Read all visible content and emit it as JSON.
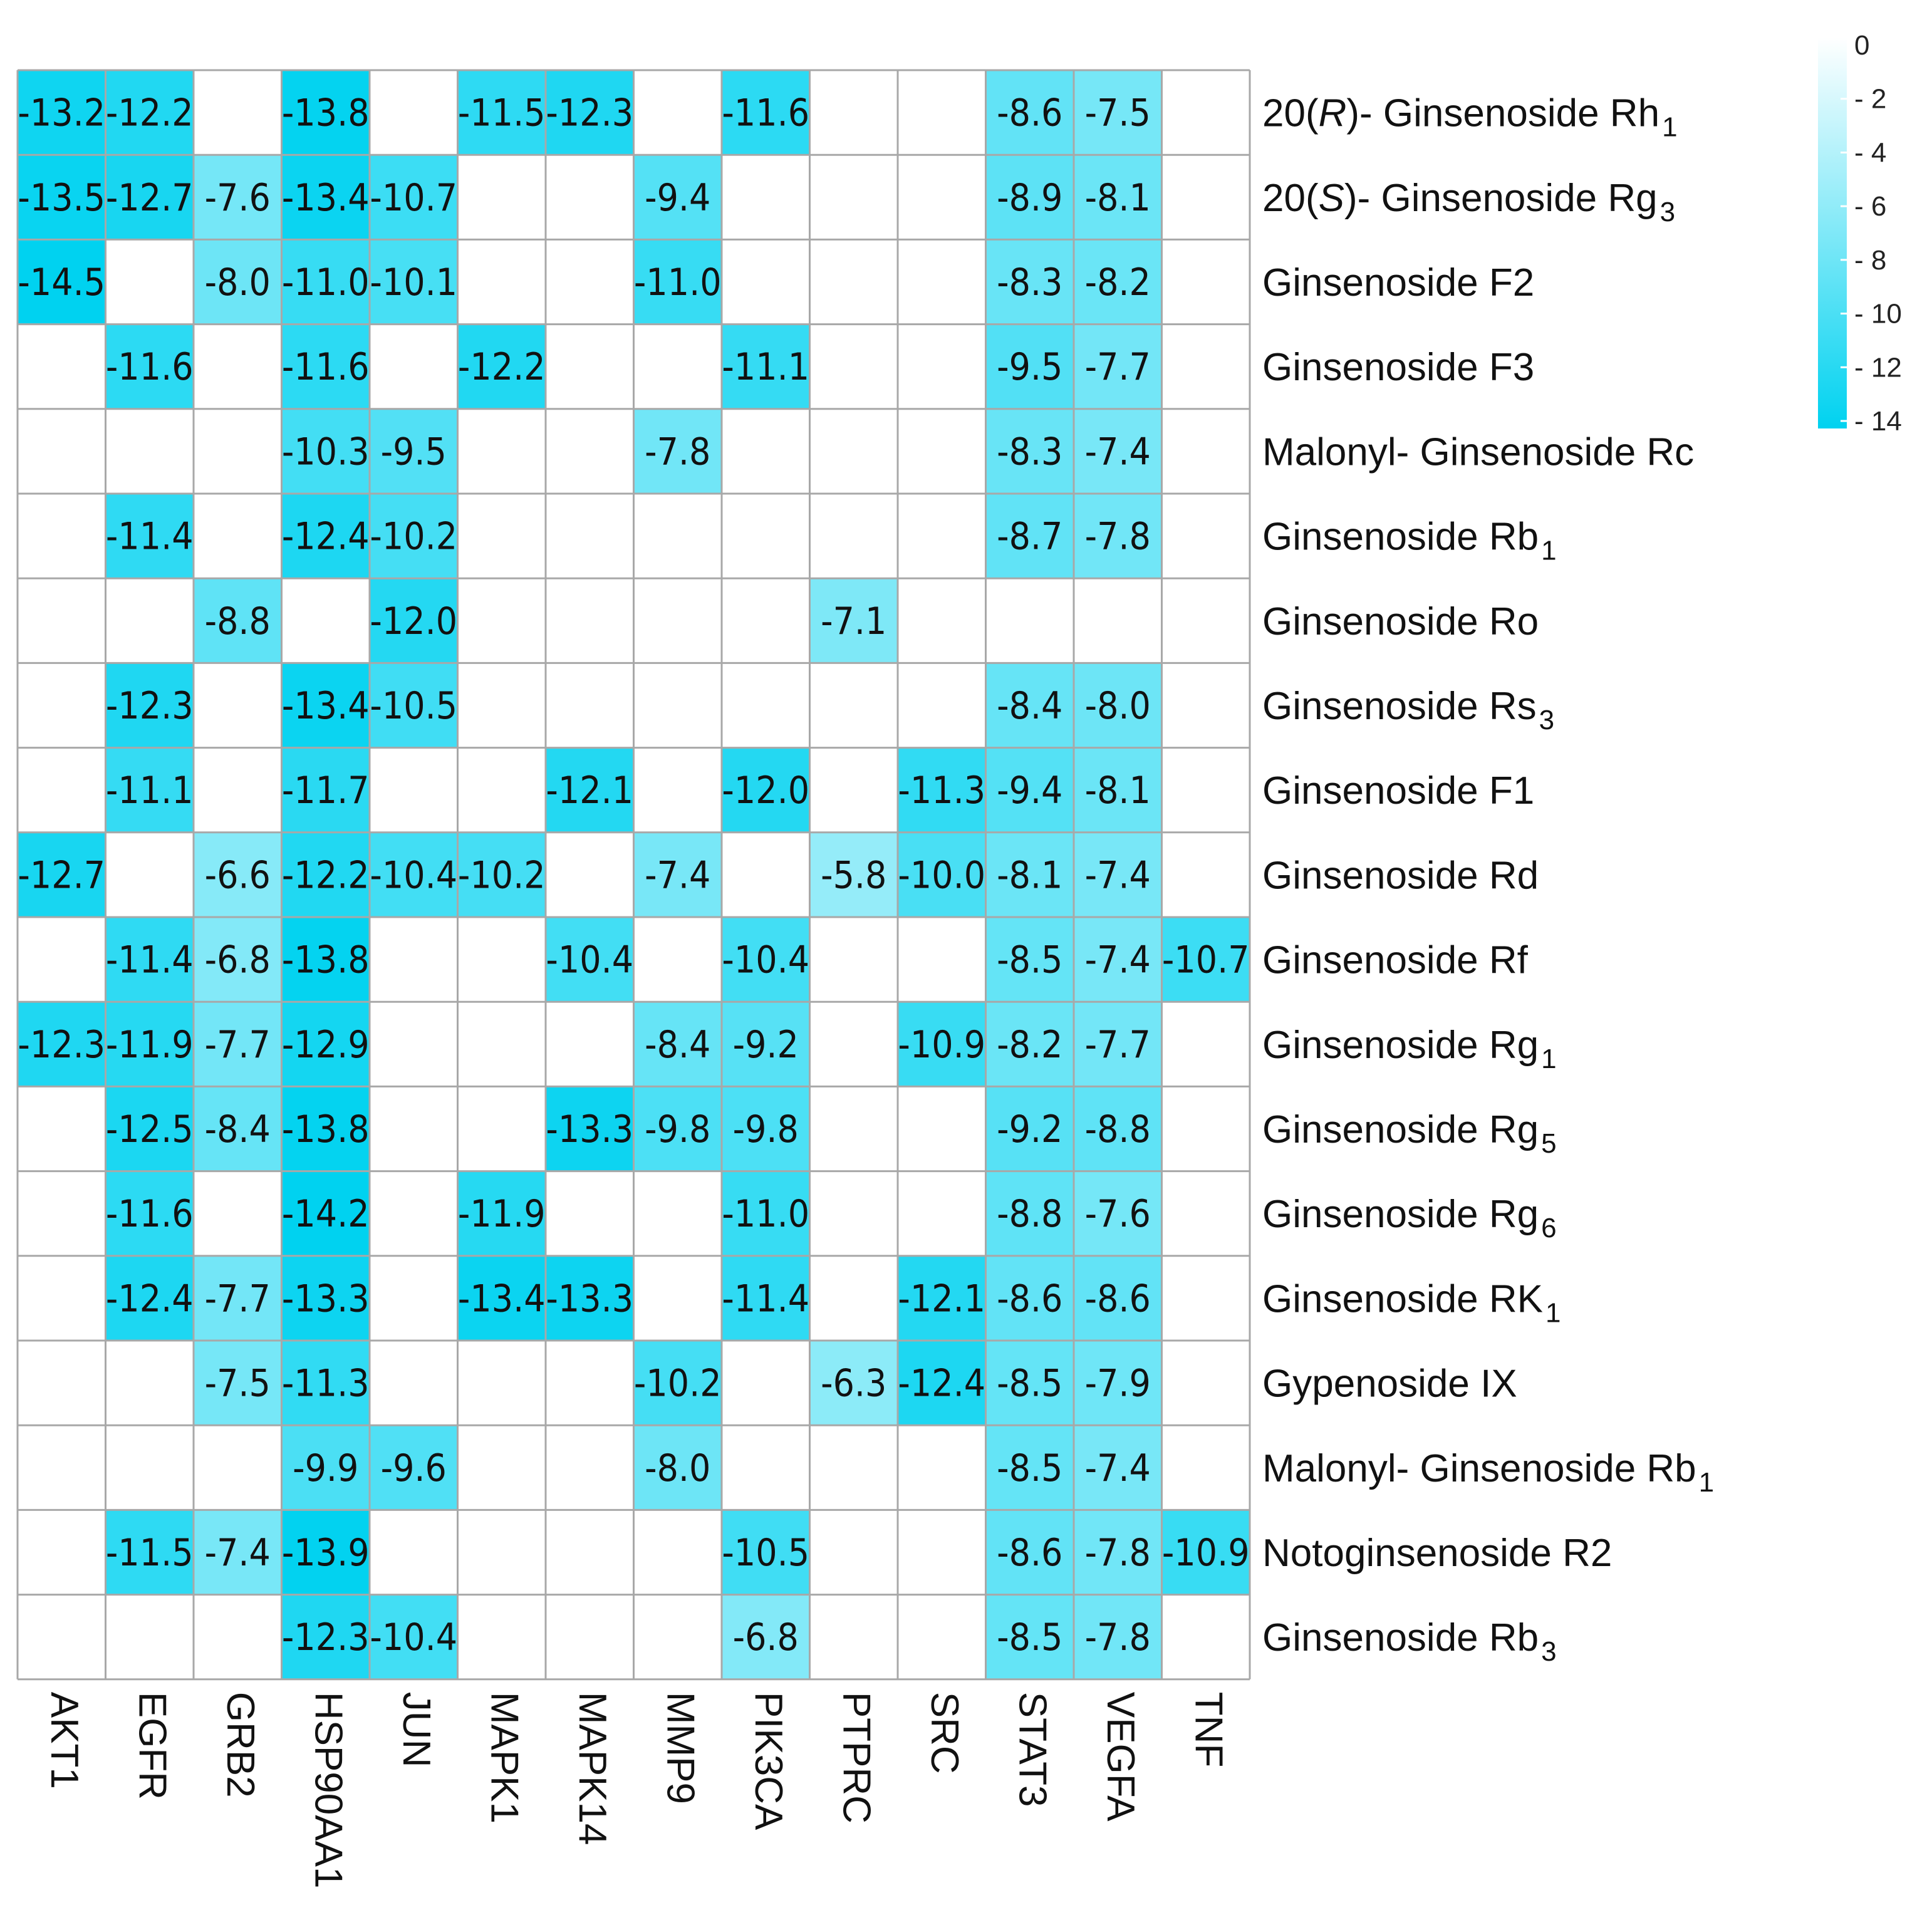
{
  "chart_data": {
    "type": "heatmap",
    "title": "",
    "columns": [
      "AKT1",
      "EGFR",
      "GRB2",
      "HSP90AA1",
      "JUN",
      "MAPK1",
      "MAPK14",
      "MMP9",
      "PIK3CA",
      "PTPRC",
      "SRC",
      "STAT3",
      "VEGFA",
      "TNF"
    ],
    "rows": [
      {
        "pre": "20(",
        "ital": "R",
        "post": ")- Ginsenoside Rh",
        "sub": "1"
      },
      {
        "pre": "20(",
        "ital": "S",
        "post": ")- Ginsenoside Rg",
        "sub": "3"
      },
      {
        "pre": "Ginsenoside F2",
        "ital": "",
        "post": "",
        "sub": ""
      },
      {
        "pre": "Ginsenoside F3",
        "ital": "",
        "post": "",
        "sub": ""
      },
      {
        "pre": "Malonyl- Ginsenoside Rc",
        "ital": "",
        "post": "",
        "sub": ""
      },
      {
        "pre": "Ginsenoside Rb",
        "ital": "",
        "post": "",
        "sub": "1"
      },
      {
        "pre": "Ginsenoside Ro",
        "ital": "",
        "post": "",
        "sub": ""
      },
      {
        "pre": "Ginsenoside Rs",
        "ital": "",
        "post": "",
        "sub": "3"
      },
      {
        "pre": "Ginsenoside F1",
        "ital": "",
        "post": "",
        "sub": ""
      },
      {
        "pre": "Ginsenoside Rd",
        "ital": "",
        "post": "",
        "sub": ""
      },
      {
        "pre": "Ginsenoside Rf",
        "ital": "",
        "post": "",
        "sub": ""
      },
      {
        "pre": "Ginsenoside Rg",
        "ital": "",
        "post": "",
        "sub": "1"
      },
      {
        "pre": "Ginsenoside Rg",
        "ital": "",
        "post": "",
        "sub": "5"
      },
      {
        "pre": "Ginsenoside Rg",
        "ital": "",
        "post": "",
        "sub": "6"
      },
      {
        "pre": "Ginsenoside RK",
        "ital": "",
        "post": "",
        "sub": "1"
      },
      {
        "pre": "Gypenoside IX",
        "ital": "",
        "post": "",
        "sub": ""
      },
      {
        "pre": "Malonyl- Ginsenoside Rb",
        "ital": "",
        "post": "",
        "sub": "1"
      },
      {
        "pre": "Notoginsenoside R2",
        "ital": "",
        "post": "",
        "sub": ""
      },
      {
        "pre": "Ginsenoside Rb",
        "ital": "",
        "post": "",
        "sub": "3"
      }
    ],
    "values": [
      [
        -13.2,
        -12.2,
        null,
        -13.8,
        null,
        -11.5,
        -12.3,
        null,
        -11.6,
        null,
        null,
        -8.6,
        -7.5,
        null
      ],
      [
        -13.5,
        -12.7,
        -7.6,
        -13.4,
        -10.7,
        null,
        null,
        -9.4,
        null,
        null,
        null,
        -8.9,
        -8.1,
        null
      ],
      [
        -14.5,
        null,
        -8.0,
        -11.0,
        -10.1,
        null,
        null,
        -11.0,
        null,
        null,
        null,
        -8.3,
        -8.2,
        null
      ],
      [
        null,
        -11.6,
        null,
        -11.6,
        null,
        -12.2,
        null,
        null,
        -11.1,
        null,
        null,
        -9.5,
        -7.7,
        null
      ],
      [
        null,
        null,
        null,
        -10.3,
        -9.5,
        null,
        null,
        -7.8,
        null,
        null,
        null,
        -8.3,
        -7.4,
        null
      ],
      [
        null,
        -11.4,
        null,
        -12.4,
        -10.2,
        null,
        null,
        null,
        null,
        null,
        null,
        -8.7,
        -7.8,
        null
      ],
      [
        null,
        null,
        -8.8,
        null,
        -12.0,
        null,
        null,
        null,
        null,
        -7.1,
        null,
        null,
        null,
        null
      ],
      [
        null,
        -12.3,
        null,
        -13.4,
        -10.5,
        null,
        null,
        null,
        null,
        null,
        null,
        -8.4,
        -8.0,
        null
      ],
      [
        null,
        -11.1,
        null,
        -11.7,
        null,
        null,
        -12.1,
        null,
        -12.0,
        null,
        -11.3,
        -9.4,
        -8.1,
        null
      ],
      [
        -12.7,
        null,
        -6.6,
        -12.2,
        -10.4,
        -10.2,
        null,
        -7.4,
        null,
        -5.8,
        -10.0,
        -8.1,
        -7.4,
        null
      ],
      [
        null,
        -11.4,
        -6.8,
        -13.8,
        null,
        null,
        -10.4,
        null,
        -10.4,
        null,
        null,
        -8.5,
        -7.4,
        -10.7
      ],
      [
        -12.3,
        -11.9,
        -7.7,
        -12.9,
        null,
        null,
        null,
        -8.4,
        -9.2,
        null,
        -10.9,
        -8.2,
        -7.7,
        null
      ],
      [
        null,
        -12.5,
        -8.4,
        -13.8,
        null,
        null,
        -13.3,
        -9.8,
        -9.8,
        null,
        null,
        -9.2,
        -8.8,
        null
      ],
      [
        null,
        -11.6,
        null,
        -14.2,
        null,
        -11.9,
        null,
        null,
        -11.0,
        null,
        null,
        -8.8,
        -7.6,
        null
      ],
      [
        null,
        -12.4,
        -7.7,
        -13.3,
        null,
        -13.4,
        -13.3,
        null,
        -11.4,
        null,
        -12.1,
        -8.6,
        -8.6,
        null
      ],
      [
        null,
        null,
        -7.5,
        -11.3,
        null,
        null,
        null,
        -10.2,
        null,
        -6.3,
        -12.4,
        -8.5,
        -7.9,
        null
      ],
      [
        null,
        null,
        null,
        -9.9,
        -9.6,
        null,
        null,
        -8.0,
        null,
        null,
        null,
        -8.5,
        -7.4,
        null
      ],
      [
        null,
        -11.5,
        -7.4,
        -13.9,
        null,
        null,
        null,
        null,
        -10.5,
        null,
        null,
        -8.6,
        -7.8,
        -10.9
      ],
      [
        null,
        null,
        null,
        -12.3,
        -10.4,
        null,
        null,
        null,
        -6.8,
        null,
        null,
        -8.5,
        -7.8,
        null
      ]
    ],
    "colorbar": {
      "range": [
        -14,
        0
      ],
      "ticks": [
        "0",
        "- 2",
        "- 4",
        "- 6",
        "- 8",
        "- 10",
        "- 12",
        "- 14"
      ],
      "low_color": "#00d2f0",
      "high_color": "#ffffff"
    },
    "legend_placement": "top-right"
  }
}
